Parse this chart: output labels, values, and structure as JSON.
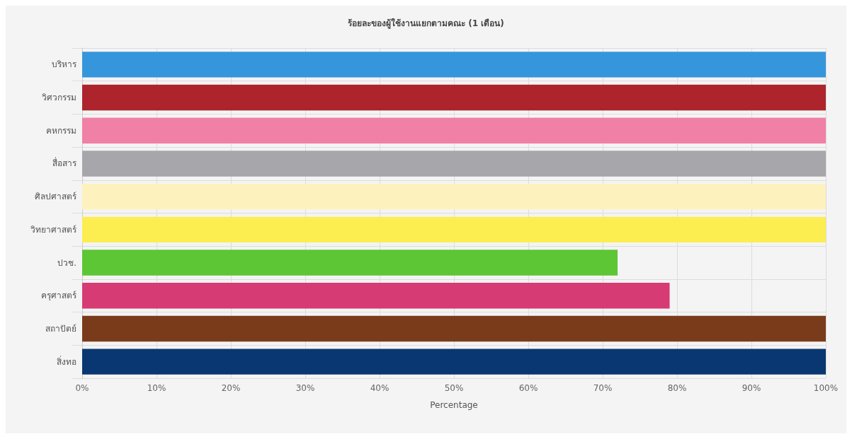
{
  "chart_data": {
    "type": "bar",
    "orientation": "horizontal",
    "title": "ร้อยละของผู้ใช้งานแยกตามคณะ (1 เดือน)",
    "xlabel": "Percentage",
    "categories": [
      "บริหาร",
      "วิศวกรรม",
      "คหกรรม",
      "สื่อสาร",
      "ศิลปศาสตร์",
      "วิทยาศาสตร์",
      "ปวช.",
      "ครุศาสตร์",
      "สถาปัตย์",
      "สิ่งทอ"
    ],
    "values": [
      100,
      100,
      100,
      100,
      100,
      100,
      72,
      79,
      100,
      100
    ],
    "colors": [
      "#3696dc",
      "#ad242c",
      "#f080a6",
      "#a7a6aa",
      "#fdf2bd",
      "#fced51",
      "#5dc634",
      "#d63b73",
      "#7a3b1a",
      "#093771"
    ],
    "xlim": [
      0,
      100
    ],
    "xticks": [
      {
        "value": 0,
        "label": "0%"
      },
      {
        "value": 10,
        "label": "10%"
      },
      {
        "value": 20,
        "label": "20%"
      },
      {
        "value": 30,
        "label": "30%"
      },
      {
        "value": 40,
        "label": "40%"
      },
      {
        "value": 50,
        "label": "50%"
      },
      {
        "value": 60,
        "label": "60%"
      },
      {
        "value": 70,
        "label": "70%"
      },
      {
        "value": 80,
        "label": "80%"
      },
      {
        "value": 90,
        "label": "90%"
      },
      {
        "value": 100,
        "label": "100%"
      }
    ],
    "grid": true
  }
}
